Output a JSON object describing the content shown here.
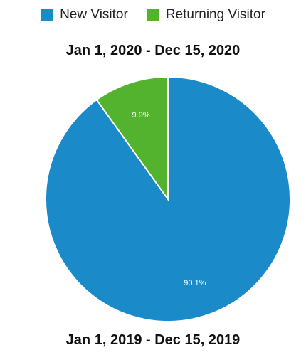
{
  "legend": [
    {
      "name": "New Visitor",
      "color": "#1a8ac8"
    },
    {
      "name": "Returning Visitor",
      "color": "#53b32f"
    }
  ],
  "chart_data": {
    "type": "pie",
    "title": "Jan 1, 2020 - Dec 15, 2020",
    "slices": [
      {
        "name": "New Visitor",
        "value": 90.1,
        "label": "90.1%",
        "color": "#1a8ac8"
      },
      {
        "name": "Returning Visitor",
        "value": 9.9,
        "label": "9.9%",
        "color": "#53b32f"
      }
    ]
  },
  "footer_title": "Jan 1, 2019 - Dec 15, 2019"
}
